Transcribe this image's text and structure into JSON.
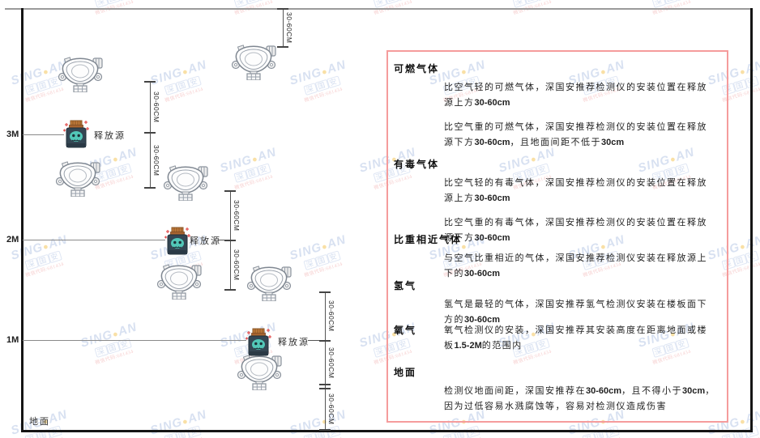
{
  "diagram": {
    "axis_labels": {
      "h3": "3M",
      "h2": "2M",
      "h1": "1M"
    },
    "ground_label": "地面",
    "release_source_label": "释放源",
    "dimension_label": "30-60CM"
  },
  "watermark": {
    "latin_left": "SING",
    "dot": "●",
    "latin_right": "AN",
    "cjk": "深国安",
    "red_text": "微信代码:681434"
  },
  "panel": {
    "border_color": "#f59c9c",
    "sections": [
      {
        "heading": "可燃气体",
        "inline": false,
        "paras": [
          [
            {
              "t": "比空气轻的可燃气体，深国安推荐检测仪的安装位置在释放源上方"
            },
            {
              "t": "30-60cm",
              "b": true
            }
          ],
          [
            {
              "t": "比空气重的可燃气体，深国安推荐检测仪的安装位置在释放源下方"
            },
            {
              "t": "30-60cm",
              "b": true
            },
            {
              "t": "，且地面间距不低于"
            },
            {
              "t": "30cm",
              "b": true
            }
          ]
        ]
      },
      {
        "heading": "有毒气体",
        "inline": false,
        "paras": [
          [
            {
              "t": "比空气轻的有毒气体，深国安推荐检测仪的安装位置在释放源上方"
            },
            {
              "t": "30-60cm",
              "b": true
            }
          ],
          [
            {
              "t": "比空气重的有毒气体，深国安推荐检测仪的安装位置在释放源下方"
            },
            {
              "t": "30-60cm",
              "b": true
            }
          ]
        ]
      },
      {
        "heading": "比重相近气体",
        "inline": false,
        "paras": [
          [
            {
              "t": "与空气比重相近的气体，深国安推荐检测仪安装在释放源上下的"
            },
            {
              "t": "30-60cm",
              "b": true
            }
          ]
        ]
      },
      {
        "heading": "氢气",
        "inline": false,
        "paras": [
          [
            {
              "t": "氢气是最轻的气体，深国安推荐氢气检测仪安装在楼板面下方的"
            },
            {
              "t": "30-60cm",
              "b": true
            }
          ]
        ]
      },
      {
        "heading": "氧气",
        "inline": true,
        "paras": [
          [
            {
              "t": "氧气检测仪的安装，深国安推荐其安装高度在距离地面或楼板"
            },
            {
              "t": "1.5-2M",
              "b": true
            },
            {
              "t": "的范围内"
            }
          ]
        ]
      },
      {
        "heading": "地面",
        "inline": false,
        "paras": [
          [
            {
              "t": "检测仪地面间距，深国安推荐在"
            },
            {
              "t": "30-60cm",
              "b": true
            },
            {
              "t": "，且不得小于"
            },
            {
              "t": "30cm",
              "b": true
            },
            {
              "t": "，因为过低容易水溅腐蚀等，容易对检测仪造成伤害"
            }
          ]
        ]
      }
    ]
  },
  "colors": {
    "panel_border": "#f59c9c",
    "source_body": "#344653",
    "source_face": "#52c7b8",
    "source_cork": "#c07a3a",
    "sparkle_red": "#e35050",
    "watermark_blue": "#7d9bd2",
    "line_dark": "#151515",
    "line_gray": "#8a8a8a"
  }
}
